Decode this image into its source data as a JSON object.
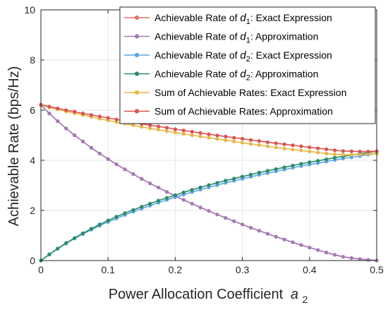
{
  "chart_data": {
    "type": "line",
    "title": "",
    "xlabel": "Power Allocation Coefficient",
    "xlabel_symbol": "a",
    "xlabel_subscript": "2",
    "ylabel": "Achievable Rate (bps/Hz)",
    "xlim": [
      0,
      0.5
    ],
    "ylim": [
      0,
      10
    ],
    "xticks": [
      "0",
      "0.1",
      "0.2",
      "0.3",
      "0.4",
      "0.5"
    ],
    "yticks": [
      "0",
      "2",
      "4",
      "6",
      "8",
      "10"
    ],
    "grid": true,
    "legend_position": "top-right",
    "x": [
      0,
      0.0125,
      0.025,
      0.0375,
      0.05,
      0.0625,
      0.075,
      0.0875,
      0.1,
      0.1125,
      0.125,
      0.1375,
      0.15,
      0.1625,
      0.175,
      0.1875,
      0.2,
      0.2125,
      0.225,
      0.2375,
      0.25,
      0.2625,
      0.275,
      0.2875,
      0.3,
      0.3125,
      0.325,
      0.3375,
      0.35,
      0.3625,
      0.375,
      0.3875,
      0.4,
      0.4125,
      0.425,
      0.4375,
      0.45,
      0.4625,
      0.475,
      0.4875,
      0.5
    ],
    "series": [
      {
        "label_parts": [
          "Achievable Rate of ",
          "d",
          "1",
          ": Exact Expression"
        ],
        "color": "#e8706f",
        "values": [
          6.2,
          5.87,
          5.56,
          5.27,
          5.0,
          4.75,
          4.5,
          4.27,
          4.05,
          3.84,
          3.64,
          3.45,
          3.26,
          3.08,
          2.91,
          2.74,
          2.58,
          2.42,
          2.27,
          2.12,
          1.98,
          1.84,
          1.7,
          1.57,
          1.44,
          1.31,
          1.19,
          1.07,
          0.95,
          0.84,
          0.73,
          0.62,
          0.52,
          0.42,
          0.32,
          0.23,
          0.15,
          0.1,
          0.06,
          0.03,
          0.0
        ]
      },
      {
        "label_parts": [
          "Achievable Rate of ",
          "d",
          "1",
          ": Approximation"
        ],
        "color": "#a27bb8",
        "values": [
          6.2,
          5.87,
          5.56,
          5.27,
          5.0,
          4.75,
          4.5,
          4.27,
          4.05,
          3.84,
          3.64,
          3.45,
          3.26,
          3.08,
          2.91,
          2.74,
          2.58,
          2.42,
          2.27,
          2.12,
          1.98,
          1.84,
          1.7,
          1.57,
          1.44,
          1.31,
          1.19,
          1.07,
          0.95,
          0.84,
          0.73,
          0.62,
          0.52,
          0.42,
          0.32,
          0.23,
          0.15,
          0.1,
          0.06,
          0.03,
          0.0
        ]
      },
      {
        "label_parts": [
          "Achievable Rate of ",
          "d",
          "2",
          ": Exact Expression"
        ],
        "color": "#5da5e0",
        "values": [
          0.0,
          0.24,
          0.47,
          0.68,
          0.88,
          1.06,
          1.23,
          1.39,
          1.54,
          1.68,
          1.82,
          1.95,
          2.07,
          2.19,
          2.31,
          2.42,
          2.53,
          2.63,
          2.73,
          2.83,
          2.92,
          3.01,
          3.1,
          3.18,
          3.26,
          3.34,
          3.42,
          3.49,
          3.56,
          3.63,
          3.7,
          3.77,
          3.83,
          3.89,
          3.95,
          4.01,
          4.07,
          4.12,
          4.17,
          4.22,
          4.27
        ]
      },
      {
        "label_parts": [
          "Achievable Rate of ",
          "d",
          "2",
          ": Approximation"
        ],
        "color": "#2a8a6c",
        "values": [
          0.0,
          0.25,
          0.48,
          0.7,
          0.9,
          1.09,
          1.27,
          1.44,
          1.6,
          1.75,
          1.89,
          2.02,
          2.15,
          2.27,
          2.39,
          2.5,
          2.61,
          2.72,
          2.82,
          2.92,
          3.01,
          3.1,
          3.19,
          3.27,
          3.35,
          3.43,
          3.51,
          3.58,
          3.65,
          3.72,
          3.79,
          3.86,
          3.92,
          3.98,
          4.04,
          4.1,
          4.16,
          4.21,
          4.26,
          4.31,
          4.36
        ]
      },
      {
        "label_parts": [
          "Sum of Achievable Rates: Exact Expression"
        ],
        "color": "#e8b84a",
        "values": [
          6.2,
          6.11,
          6.03,
          5.95,
          5.88,
          5.81,
          5.73,
          5.66,
          5.59,
          5.52,
          5.46,
          5.4,
          5.33,
          5.27,
          5.22,
          5.16,
          5.11,
          5.05,
          5.0,
          4.95,
          4.9,
          4.85,
          4.8,
          4.75,
          4.7,
          4.65,
          4.61,
          4.56,
          4.51,
          4.47,
          4.43,
          4.39,
          4.35,
          4.31,
          4.27,
          4.24,
          4.22,
          4.22,
          4.23,
          4.25,
          4.27
        ]
      },
      {
        "label_parts": [
          "Sum of Achievable Rates: Approximation"
        ],
        "color": "#d9534f",
        "values": [
          6.22,
          6.14,
          6.07,
          6.0,
          5.94,
          5.87,
          5.81,
          5.75,
          5.69,
          5.63,
          5.57,
          5.51,
          5.45,
          5.4,
          5.35,
          5.3,
          5.24,
          5.19,
          5.14,
          5.09,
          5.04,
          4.99,
          4.95,
          4.9,
          4.86,
          4.81,
          4.77,
          4.72,
          4.68,
          4.64,
          4.6,
          4.56,
          4.52,
          4.48,
          4.44,
          4.4,
          4.37,
          4.36,
          4.35,
          4.35,
          4.36
        ]
      }
    ]
  }
}
